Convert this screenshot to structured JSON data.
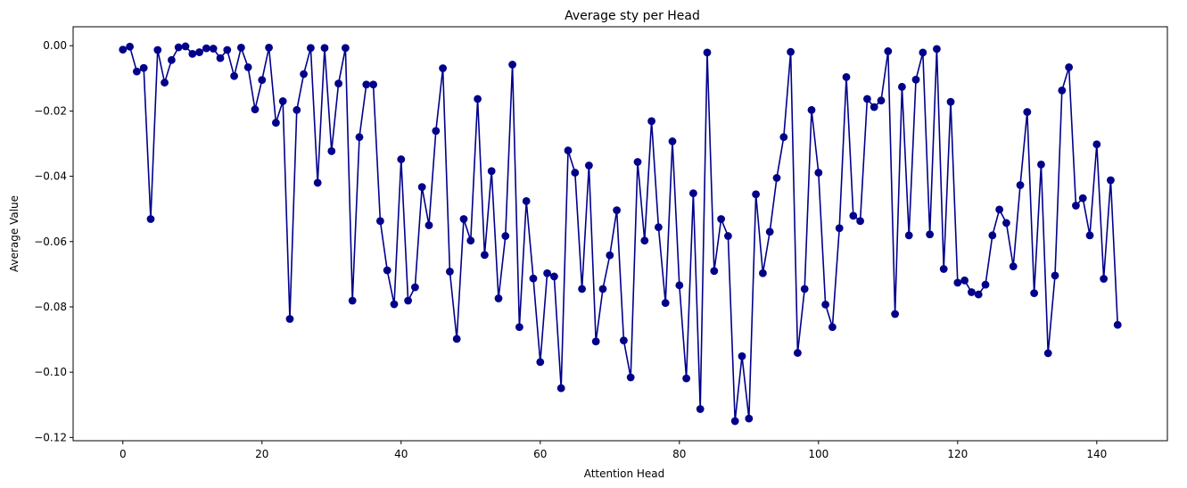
{
  "chart_data": {
    "type": "line",
    "title": "Average sty per Head",
    "xlabel": "Attention Head",
    "ylabel": "Average Value",
    "xlim": [
      -7.15,
      150.15
    ],
    "ylim": [
      -0.121,
      0.0058
    ],
    "xticks": [
      0,
      20,
      40,
      60,
      80,
      100,
      120,
      140
    ],
    "xtick_labels": [
      "0",
      "20",
      "40",
      "60",
      "80",
      "100",
      "120",
      "140"
    ],
    "yticks": [
      0.0,
      -0.02,
      -0.04,
      -0.06,
      -0.08,
      -0.1,
      -0.12
    ],
    "ytick_labels": [
      "0.00",
      "−0.02",
      "−0.04",
      "−0.06",
      "−0.08",
      "−0.10",
      "−0.12"
    ],
    "grid": false,
    "legend": false,
    "marker": "circle",
    "series_color": "#00008b",
    "series": [
      {
        "values": [
          -0.0012,
          -0.0003,
          -0.0079,
          -0.0068,
          -0.0531,
          -0.0013,
          -0.0113,
          -0.0044,
          -0.0005,
          -0.0002,
          -0.0025,
          -0.002,
          -0.0008,
          -0.0009,
          -0.0038,
          -0.0013,
          -0.0093,
          -0.0006,
          -0.0066,
          -0.0195,
          -0.0105,
          -0.0006,
          -0.0236,
          -0.017,
          -0.0837,
          -0.0197,
          -0.0087,
          -0.0007,
          -0.042,
          -0.0007,
          -0.0323,
          -0.0116,
          -0.0007,
          -0.0781,
          -0.028,
          -0.0119,
          -0.0119,
          -0.0537,
          -0.0688,
          -0.0792,
          -0.0348,
          -0.0781,
          -0.074,
          -0.0433,
          -0.055,
          -0.0261,
          -0.0069,
          -0.0692,
          -0.0898,
          -0.0531,
          -0.0597,
          -0.0163,
          -0.0641,
          -0.0384,
          -0.0774,
          -0.0583,
          -0.0058,
          -0.0862,
          -0.0476,
          -0.0713,
          -0.0969,
          -0.0697,
          -0.0707,
          -0.1049,
          -0.0321,
          -0.0389,
          -0.0745,
          -0.0367,
          -0.0906,
          -0.0745,
          -0.0642,
          -0.0504,
          -0.0903,
          -0.1016,
          -0.0356,
          -0.0597,
          -0.0231,
          -0.0556,
          -0.0788,
          -0.0293,
          -0.0734,
          -0.1019,
          -0.0452,
          -0.1113,
          -0.0021,
          -0.069,
          -0.0531,
          -0.0583,
          -0.115,
          -0.0951,
          -0.1142,
          -0.0455,
          -0.0697,
          -0.057,
          -0.0405,
          -0.028,
          -0.0019,
          -0.0941,
          -0.0745,
          -0.0197,
          -0.0389,
          -0.0793,
          -0.0862,
          -0.0559,
          -0.0096,
          -0.0521,
          -0.0537,
          -0.0163,
          -0.0188,
          -0.0168,
          -0.0017,
          -0.0822,
          -0.0126,
          -0.0581,
          -0.0104,
          -0.0021,
          -0.0578,
          -0.001,
          -0.0684,
          -0.0172,
          -0.0726,
          -0.0719,
          -0.0755,
          -0.0762,
          -0.0732,
          -0.0581,
          -0.0502,
          -0.0543,
          -0.0676,
          -0.0427,
          -0.0203,
          -0.0758,
          -0.0364,
          -0.0942,
          -0.0704,
          -0.0137,
          -0.0066,
          -0.049,
          -0.0467,
          -0.0581,
          -0.0302,
          -0.0714,
          -0.0412,
          -0.0855
        ]
      }
    ]
  }
}
